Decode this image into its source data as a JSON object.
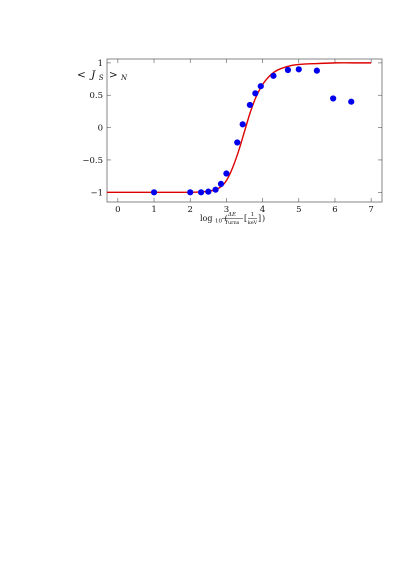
{
  "chart_data": {
    "type": "scatter",
    "ylabel": {
      "lt": "<",
      "var": "J",
      "var_sub": "S",
      "gt": ">",
      "gt_sub": "N"
    },
    "xlabel": {
      "log": "log",
      "log_sub": "10",
      "open": "(",
      "num": "ΔE",
      "den": "Turns",
      "inner_open": "[",
      "inner_num": "1",
      "inner_den": "keV",
      "inner_close": "]",
      "close": ")"
    },
    "xlim": [
      -0.3,
      7.3
    ],
    "ylim": [
      -1.15,
      1.06
    ],
    "x_ticks": [
      0,
      1,
      2,
      3,
      4,
      5,
      6,
      7
    ],
    "x_tick_labels": [
      "0",
      "1",
      "2",
      "3",
      "4",
      "5",
      "6",
      "7"
    ],
    "y_ticks": [
      -1,
      -0.5,
      0,
      0.5,
      1
    ],
    "y_tick_labels": [
      "−1",
      "−0.5",
      "0",
      "0.5",
      "1"
    ],
    "grid": false,
    "legend": "none",
    "series": [
      {
        "kind": "points",
        "color": "#0000ee",
        "x": [
          1.0,
          2.0,
          2.3,
          2.5,
          2.7,
          2.85,
          3.0,
          3.3,
          3.45,
          3.65,
          3.8,
          3.95,
          4.3,
          4.7,
          5.0,
          5.5,
          5.95,
          6.45
        ],
        "y": [
          -1.0,
          -1.0,
          -1.0,
          -0.99,
          -0.96,
          -0.87,
          -0.71,
          -0.23,
          0.05,
          0.35,
          0.53,
          0.64,
          0.8,
          0.89,
          0.9,
          0.88,
          0.45,
          0.4
        ]
      },
      {
        "kind": "curve",
        "color": "#dd0000",
        "x": [
          -0.3,
          0.5,
          1.0,
          1.5,
          2.0,
          2.4,
          2.7,
          2.9,
          3.05,
          3.2,
          3.35,
          3.5,
          3.65,
          3.8,
          3.95,
          4.1,
          4.3,
          4.5,
          4.8,
          5.1,
          5.5,
          6.0,
          6.5,
          7.0
        ],
        "y": [
          -1.0,
          -1.0,
          -1.0,
          -1.0,
          -1.0,
          -0.99,
          -0.96,
          -0.89,
          -0.77,
          -0.58,
          -0.34,
          -0.06,
          0.22,
          0.45,
          0.62,
          0.74,
          0.85,
          0.91,
          0.96,
          0.98,
          0.99,
          1.0,
          1.0,
          1.0
        ]
      }
    ]
  }
}
